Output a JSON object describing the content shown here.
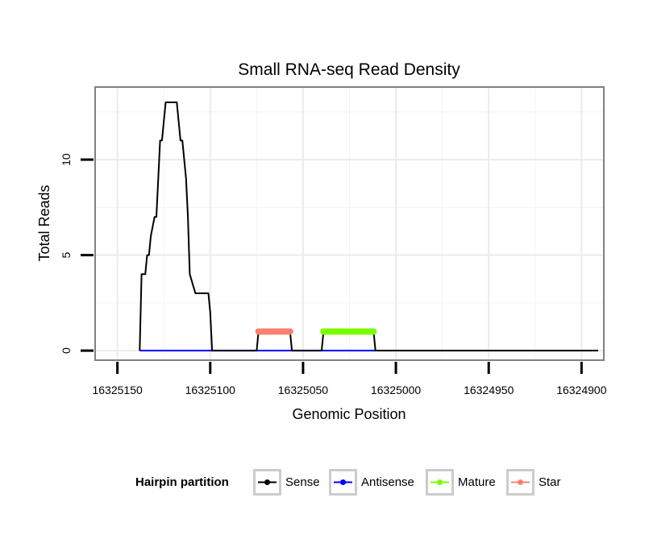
{
  "chart_data": {
    "type": "line",
    "title": "Small RNA-seq Read Density",
    "xlabel": "Genomic Position",
    "ylabel": "Total Reads",
    "xlim": [
      16325162,
      16324888
    ],
    "ylim": [
      -0.5,
      13.8
    ],
    "x_reversed": true,
    "grid": true,
    "x_ticks": [
      16325150,
      16325100,
      16325050,
      16325000,
      16324950,
      16324900
    ],
    "x_tick_labels": [
      "16325150",
      "16325100",
      "16325050",
      "16325000",
      "16324950",
      "16324900"
    ],
    "y_ticks": [
      0,
      5,
      10
    ],
    "y_tick_labels": [
      "0",
      "5",
      "10"
    ],
    "legend": {
      "title": "Hairpin partition",
      "position": "bottom",
      "entries": [
        {
          "name": "Sense",
          "color": "#000000"
        },
        {
          "name": "Antisense",
          "color": "#0000ff"
        },
        {
          "name": "Mature",
          "color": "#7cfc00"
        },
        {
          "name": "Star",
          "color": "#fa8072"
        }
      ]
    },
    "series": [
      {
        "name": "Sense",
        "color": "#000000",
        "x": [
          16325138,
          16325137,
          16325135,
          16325134,
          16325133,
          16325132,
          16325130,
          16325129,
          16325127,
          16325126,
          16325125,
          16325124,
          16325122,
          16325118,
          16325117,
          16325116,
          16325115,
          16325114,
          16325113,
          16325112,
          16325111,
          16325108,
          16325101,
          16325100,
          16325099,
          16325075,
          16325074,
          16325057,
          16325056,
          16325040,
          16325039,
          16325012,
          16325011,
          16324891
        ],
        "y": [
          0,
          4,
          4,
          5,
          5,
          6,
          7,
          7,
          11,
          11,
          12,
          13,
          13,
          13,
          12,
          11,
          11,
          10,
          9,
          7,
          4,
          3,
          3,
          2,
          0,
          0,
          1,
          1,
          0,
          0,
          1,
          1,
          0,
          0
        ]
      },
      {
        "name": "Antisense",
        "color": "#0000ff",
        "x": [
          16325138,
          16325011
        ],
        "y": [
          0,
          0
        ]
      },
      {
        "name": "Mature",
        "color": "#7cfc00",
        "x": [
          16325039,
          16325012
        ],
        "y": [
          1,
          1
        ]
      },
      {
        "name": "Star",
        "color": "#fa8072",
        "x": [
          16325074,
          16325057
        ],
        "y": [
          1,
          1
        ]
      }
    ]
  }
}
